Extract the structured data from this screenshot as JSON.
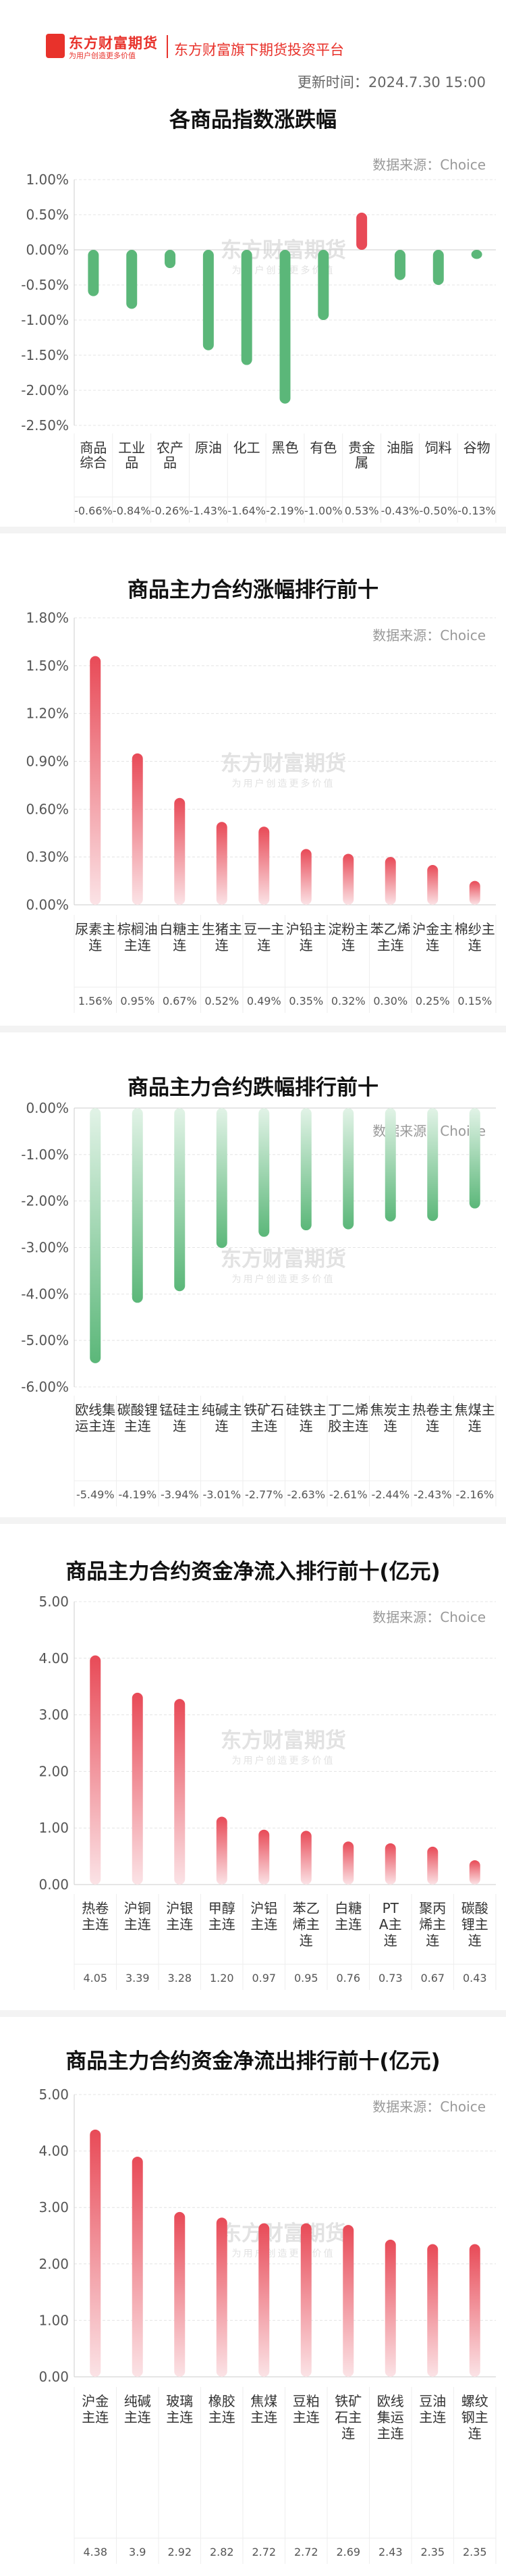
{
  "header": {
    "logo_text": "东方财富期货",
    "logo_sub": "为用户创造更多价值",
    "slogan": "东方财富旗下期货投资平台",
    "update_time": "更新时间：2024.7.30 15:00",
    "watermark_cn": "东方财富期货",
    "watermark_sub": "为用户创造更多价值"
  },
  "source_label": "数据来源：Choice",
  "colors": {
    "up": "#e84a57",
    "down": "#5bb779",
    "brand": "#e8322b"
  },
  "chart_data": [
    {
      "type": "bar",
      "title": "各商品指数涨跌幅",
      "categories": [
        "商品综合",
        "工业品",
        "农产品",
        "原油",
        "化工",
        "黑色",
        "有色",
        "贵金属",
        "油脂",
        "饲料",
        "谷物"
      ],
      "values": [
        -0.66,
        -0.84,
        -0.26,
        -1.43,
        -1.64,
        -2.19,
        -1.0,
        0.53,
        -0.43,
        -0.5,
        -0.13
      ],
      "value_labels": [
        "-0.66%",
        "-0.84%",
        "-0.26%",
        "-1.43%",
        "-1.64%",
        "-2.19%",
        "-1.00%",
        "0.53%",
        "-0.43%",
        "-0.50%",
        "-0.13%"
      ],
      "yticks": [
        "1.00%",
        "0.50%",
        "0.00%",
        "-0.50%",
        "-1.00%",
        "-1.50%",
        "-2.00%",
        "-2.50%"
      ],
      "ylim": [
        -2.5,
        1.0
      ]
    },
    {
      "type": "bar",
      "title": "商品主力合约涨幅排行前十",
      "categories": [
        "尿素主连",
        "棕榈油主连",
        "白糖主连",
        "生猪主连",
        "豆一主连",
        "沪铅主连",
        "淀粉主连",
        "苯乙烯主连",
        "沪金主连",
        "棉纱主连"
      ],
      "values": [
        1.56,
        0.95,
        0.67,
        0.52,
        0.49,
        0.35,
        0.32,
        0.3,
        0.25,
        0.15
      ],
      "value_labels": [
        "1.56%",
        "0.95%",
        "0.67%",
        "0.52%",
        "0.49%",
        "0.35%",
        "0.32%",
        "0.30%",
        "0.25%",
        "0.15%"
      ],
      "yticks": [
        "1.80%",
        "1.50%",
        "1.20%",
        "0.90%",
        "0.60%",
        "0.30%",
        "0.00%"
      ],
      "ylim": [
        0,
        1.8
      ]
    },
    {
      "type": "bar",
      "title": "商品主力合约跌幅排行前十",
      "categories": [
        "欧线集运主连",
        "碳酸锂主连",
        "锰硅主连",
        "纯碱主连",
        "铁矿石主连",
        "硅铁主连",
        "丁二烯胶主连",
        "焦炭主连",
        "热卷主连",
        "焦煤主连"
      ],
      "values": [
        -5.49,
        -4.19,
        -3.94,
        -3.01,
        -2.77,
        -2.63,
        -2.61,
        -2.44,
        -2.43,
        -2.16
      ],
      "value_labels": [
        "-5.49%",
        "-4.19%",
        "-3.94%",
        "-3.01%",
        "-2.77%",
        "-2.63%",
        "-2.61%",
        "-2.44%",
        "-2.43%",
        "-2.16%"
      ],
      "yticks": [
        "0.00%",
        "-1.00%",
        "-2.00%",
        "-3.00%",
        "-4.00%",
        "-5.00%",
        "-6.00%"
      ],
      "ylim": [
        -6,
        0
      ]
    },
    {
      "type": "bar",
      "title": "商品主力合约资金净流入排行前十(亿元)",
      "categories": [
        "热卷主连",
        "沪铜主连",
        "沪银主连",
        "甲醇主连",
        "沪铝主连",
        "苯乙烯主连",
        "白糖主连",
        "PTA主连",
        "聚丙烯主连",
        "碳酸锂主连"
      ],
      "values": [
        4.05,
        3.39,
        3.28,
        1.2,
        0.97,
        0.95,
        0.76,
        0.73,
        0.67,
        0.43
      ],
      "value_labels": [
        "4.05",
        "3.39",
        "3.28",
        "1.20",
        "0.97",
        "0.95",
        "0.76",
        "0.73",
        "0.67",
        "0.43"
      ],
      "yticks": [
        "5.00",
        "4.00",
        "3.00",
        "2.00",
        "1.00",
        "0.00"
      ],
      "ylim": [
        0,
        5
      ]
    },
    {
      "type": "bar",
      "title": "商品主力合约资金净流出排行前十(亿元)",
      "categories": [
        "沪金主连",
        "纯碱主连",
        "玻璃主连",
        "橡胶主连",
        "焦煤主连",
        "豆粕主连",
        "铁矿石主连",
        "欧线集运主连",
        "豆油主连",
        "螺纹钢主连"
      ],
      "values": [
        4.38,
        3.9,
        2.92,
        2.82,
        2.72,
        2.72,
        2.69,
        2.43,
        2.35,
        2.35
      ],
      "value_labels": [
        "4.38",
        "3.9",
        "2.92",
        "2.82",
        "2.72",
        "2.72",
        "2.69",
        "2.43",
        "2.35",
        "2.35"
      ],
      "yticks": [
        "5.00",
        "4.00",
        "3.00",
        "2.00",
        "1.00",
        "0.00"
      ],
      "ylim": [
        0,
        5
      ]
    }
  ]
}
